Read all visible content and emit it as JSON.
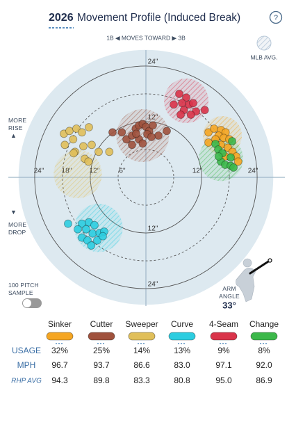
{
  "header": {
    "year": "2026",
    "title": "Movement Profile (Induced Break)",
    "help": "?",
    "direction": "1B ◀ MOVES TOWARD ▶ 3B",
    "mlb_avg": "MLB AVG."
  },
  "chart_data": {
    "type": "scatter",
    "xticks": [
      {
        "value": -24,
        "label": "24\""
      },
      {
        "value": -18,
        "label": "18\""
      },
      {
        "value": -12,
        "label": "12\""
      },
      {
        "value": -6,
        "label": "6\""
      },
      {
        "value": 12,
        "label": "12\""
      },
      {
        "value": 24,
        "label": "24\""
      }
    ],
    "yticks": [
      {
        "value": 24,
        "label": "24\""
      },
      {
        "value": 12,
        "label": "12\""
      },
      {
        "value": -12,
        "label": "12\""
      },
      {
        "value": -24,
        "label": "24\""
      }
    ],
    "rings": [
      {
        "r": 6,
        "dashed": true
      },
      {
        "r": 12,
        "dashed": false
      },
      {
        "r": 18,
        "dashed": true
      },
      {
        "r": 24,
        "dashed": false
      }
    ],
    "series": [
      {
        "name": "Sinker",
        "color": "#f5a623",
        "x": [
          13.5,
          14.7,
          16.2,
          17.2,
          15.7,
          16.8,
          18.0,
          15.0,
          13.5,
          16.2,
          17.7,
          18.7,
          19.5,
          19.9,
          17.1
        ],
        "y": [
          9.7,
          10.5,
          10.2,
          9.7,
          9.0,
          8.5,
          8.2,
          8.2,
          7.5,
          7.0,
          6.4,
          5.5,
          4.5,
          3.4,
          4.5
        ],
        "avg": {
          "x": 16.5,
          "y": 9.0,
          "r": 4.2
        }
      },
      {
        "name": "Cutter",
        "color": "#a0523d",
        "x": [
          -5.2,
          -4.2,
          -3.0,
          -2.2,
          -1.5,
          -0.7,
          0,
          0.7,
          1.5,
          0.3,
          -1.5,
          -3.0,
          -0.7,
          2.7,
          4.5,
          -2.1,
          1.2,
          -7.2
        ],
        "y": [
          9.7,
          8.2,
          9.0,
          10.5,
          11.2,
          11.5,
          10.9,
          10.0,
          11.2,
          9.3,
          8.2,
          7.0,
          7.3,
          9.0,
          10.0,
          9.4,
          8.7,
          9.7
        ],
        "avg": {
          "x": -0.7,
          "y": 9.0,
          "r": 5.7
        }
      },
      {
        "name": "Sweeper",
        "color": "#e0bf5a",
        "x": [
          -17.7,
          -16.5,
          -15.0,
          -13.8,
          -12.3,
          -15.7,
          -17.5,
          -15.3,
          -13.5,
          -11.7,
          -13.2,
          -12.4,
          -10.2,
          -7.9,
          -15.6
        ],
        "y": [
          9.4,
          10.0,
          10.5,
          9.7,
          10.8,
          8.2,
          7.0,
          5.5,
          6.7,
          7.0,
          4.0,
          3.4,
          5.5,
          5.5,
          5.2
        ],
        "avg": {
          "x": -14.7,
          "y": 0.7,
          "r": 5.2
        }
      },
      {
        "name": "Curve",
        "color": "#2ccde0",
        "x": [
          -16.8,
          -13.8,
          -12.3,
          -11.1,
          -12.9,
          -11.5,
          -10.0,
          -9.0,
          -13.8,
          -12.6,
          -11.8,
          -10.5,
          -9.3,
          -14.7
        ],
        "y": [
          -10.0,
          -10.0,
          -9.7,
          -10.3,
          -11.2,
          -12.1,
          -12.0,
          -11.7,
          -13.0,
          -13.6,
          -14.7,
          -13.6,
          -12.7,
          -11.2
        ],
        "avg": {
          "x": -10.2,
          "y": -10.9,
          "r": 5.2
        }
      },
      {
        "name": "4-Seam",
        "color": "#d9344a",
        "x": [
          7.2,
          8.7,
          7.8,
          6.0,
          9.3,
          8.2,
          7.5,
          10.2,
          10.8,
          12.7,
          9.7
        ],
        "y": [
          18.0,
          17.2,
          16.0,
          15.7,
          15.7,
          14.5,
          13.5,
          16.0,
          14.2,
          14.5,
          13.5
        ],
        "avg": {
          "x": 8.7,
          "y": 16.5,
          "r": 4.8
        }
      },
      {
        "name": "Change",
        "color": "#3cb84a",
        "x": [
          15.0,
          15.6,
          16.5,
          18.6,
          18.3,
          16.2,
          17.1,
          18.3,
          18.9,
          15.7
        ],
        "y": [
          7.2,
          6.0,
          5.2,
          7.8,
          4.3,
          3.4,
          2.7,
          2.5,
          2.1,
          4.5
        ],
        "avg": {
          "x": 16.2,
          "y": 4.0,
          "r": 4.8
        }
      }
    ]
  },
  "labels": {
    "rise": "MORE RISE",
    "drop": "MORE DROP",
    "sample": "100 PITCH SAMPLE",
    "arm": "ARM ANGLE"
  },
  "arm_angle": {
    "value": 33,
    "label": "33°"
  },
  "table": {
    "row_labels": [
      "USAGE",
      "MPH",
      "RHP AVG"
    ],
    "rows": [
      [
        "32%",
        "25%",
        "14%",
        "13%",
        "9%",
        "8%"
      ],
      [
        "96.7",
        "93.7",
        "86.6",
        "83.0",
        "97.1",
        "92.0"
      ],
      [
        "94.3",
        "89.8",
        "83.3",
        "80.8",
        "95.0",
        "86.9"
      ]
    ]
  }
}
